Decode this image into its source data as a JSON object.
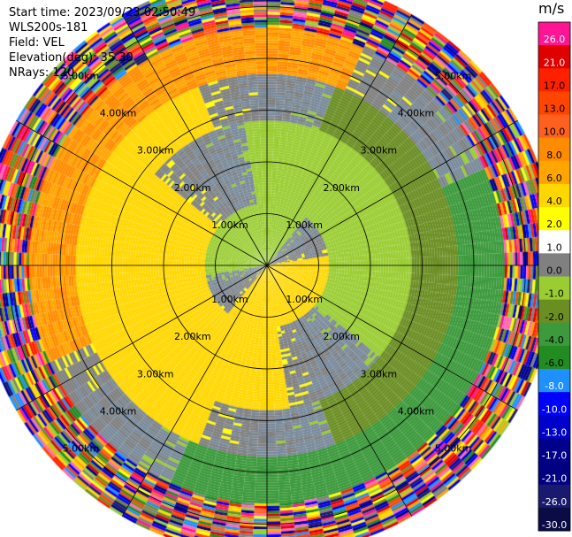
{
  "header": {
    "start_time": "Start time: 2023/09/23 02:50:49",
    "instrument": "WLS200s-181",
    "field": "Field: VEL",
    "elevation": "Elevation(deg): 35.30",
    "nrays": "NRays: 120"
  },
  "chart_data": {
    "type": "heatmap",
    "projection": "polar-ppi",
    "field": "VEL",
    "units": "m/s",
    "nrays": 120,
    "elevation_deg": 35.3,
    "range_rings_km": [
      1.0,
      2.0,
      3.0,
      4.0,
      5.0
    ],
    "range_ring_labels": [
      "1.00km",
      "2.00km",
      "3.00km",
      "4.00km",
      "5.00km"
    ],
    "max_range_km": 5.6,
    "radial_lines_deg": [
      0,
      30,
      60,
      90,
      120,
      150,
      180,
      210,
      240,
      270,
      300,
      330
    ],
    "colorbar": {
      "title": "m/s",
      "tick_labels": [
        "26.0",
        "21.0",
        "17.0",
        "13.0",
        "10.0",
        "8.0",
        "6.0",
        "4.0",
        "2.0",
        "1.0",
        "0.0",
        "-1.0",
        "-2.0",
        "-4.0",
        "-6.0",
        "-8.0",
        "-10.0",
        "-13.0",
        "-17.0",
        "-21.0",
        "-26.0",
        "-30.0"
      ],
      "colors": [
        "#ff1493",
        "#e00000",
        "#ff2000",
        "#ff4500",
        "#ff6020",
        "#ff8c00",
        "#ffa500",
        "#ffd700",
        "#ffff00",
        "#ffffff",
        "#808080",
        "#9acd32",
        "#6b8e23",
        "#3c9a3c",
        "#228b22",
        "#1e90ff",
        "#0000ff",
        "#0000cd",
        "#00008b",
        "#000080",
        "#191970",
        "#0b0b45"
      ]
    },
    "regions": [
      {
        "r_km": [
          0.0,
          1.2
        ],
        "description": "core bullseye",
        "receding_az_deg": 150,
        "approaching_az_deg": 330,
        "receding_value": 3.0,
        "approaching_value": -1.5
      },
      {
        "r_km": [
          1.2,
          2.8
        ],
        "receding_az_deg": 240,
        "approaching_az_deg": 60,
        "receding_value": 3.0,
        "approaching_value": -1.5
      },
      {
        "r_km": [
          2.8,
          3.7
        ],
        "receding_az_deg": 270,
        "approaching_az_deg": 90,
        "receding_value": 3.5,
        "approaching_value": -2.5
      },
      {
        "r_km": [
          3.7,
          4.6
        ],
        "receding_az_deg": 315,
        "approaching_az_deg": 135,
        "receding_value": 6.0,
        "approaching_value": -5.0
      },
      {
        "r_km": [
          4.6,
          5.6
        ],
        "description": "noise",
        "noise": true
      }
    ]
  }
}
